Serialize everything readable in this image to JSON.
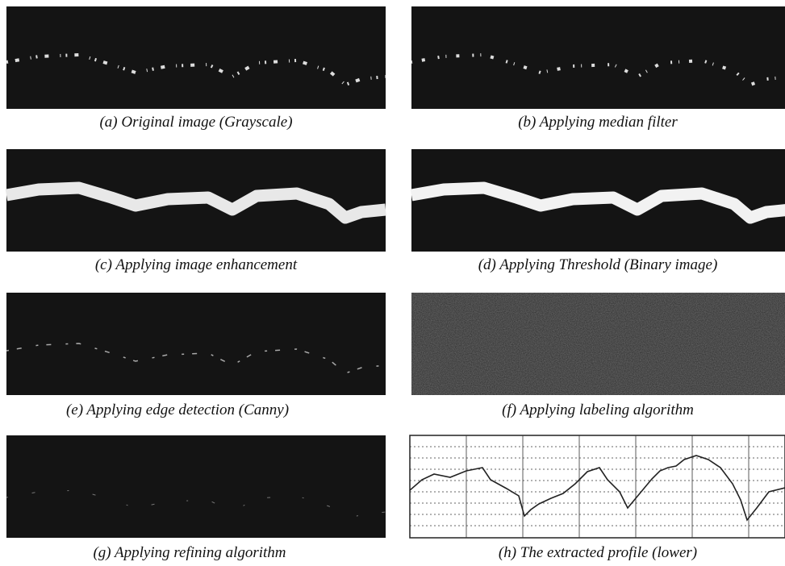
{
  "panels": [
    {
      "caption": "(a) Original image (Grayscale)"
    },
    {
      "caption": "(b) Applying median filter"
    },
    {
      "caption": "(c) Applying image enhancement"
    },
    {
      "caption": "(d) Applying Threshold (Binary image)"
    },
    {
      "caption": "(e) Applying edge detection (Canny)"
    },
    {
      "caption": "(f) Applying labeling algorithm"
    },
    {
      "caption": "(g) Applying refining algorithm"
    },
    {
      "caption": "(h) The extracted profile (lower)"
    }
  ]
}
